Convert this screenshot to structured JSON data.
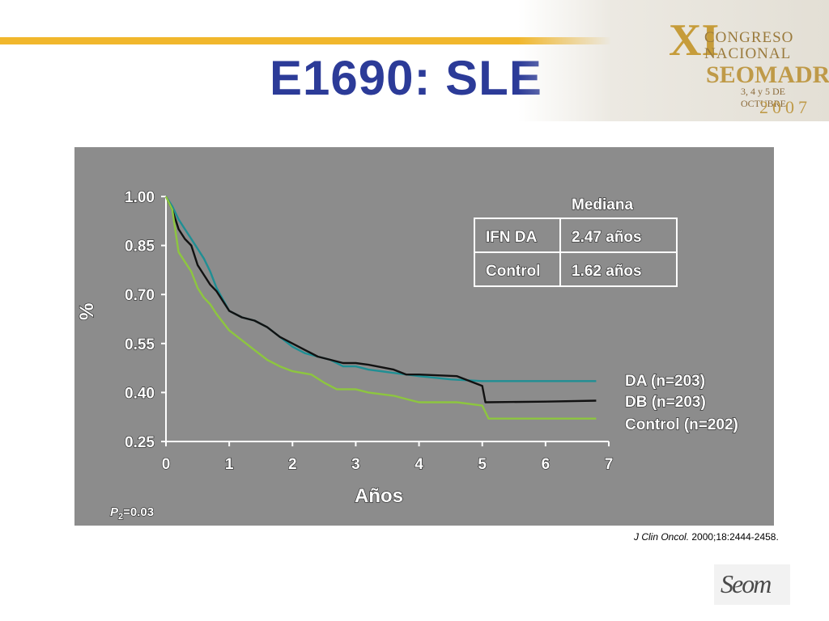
{
  "slide": {
    "title": "E1690:  SLE",
    "reference_journal": "J Clin Oncol.",
    "reference_rest": " 2000;18:2444-2458.",
    "logo": {
      "numeral": "XI",
      "line1": "CONGRESO",
      "line2": "NACIONAL",
      "line3": "SEOMADRID",
      "line4": "3, 4 y 5 DE OCTUBRE",
      "line5": "2007"
    },
    "footer_logo": "Seom",
    "accent_color": "#f1b72c",
    "title_color": "#2c3b98"
  },
  "chart_data": {
    "type": "line",
    "xlabel": "Años",
    "ylabel": "%",
    "xlim": [
      0,
      7
    ],
    "ylim": [
      0.25,
      1.0
    ],
    "x_ticks": [
      "0",
      "1",
      "2",
      "3",
      "4",
      "5",
      "6",
      "7"
    ],
    "y_ticks": [
      "0.25",
      "0.40",
      "0.55",
      "0.70",
      "0.85",
      "1.00"
    ],
    "pvalue": {
      "p": "P",
      "sub": "2",
      "value": "=0.03"
    },
    "table": {
      "header": "Mediana",
      "rows": [
        {
          "label": "IFN DA",
          "value": "2.47 años"
        },
        {
          "label": "Control",
          "value": "1.62 años"
        }
      ]
    },
    "series": [
      {
        "name": "DA (n=203)",
        "color": "#1f8f94",
        "points": [
          [
            0,
            1.0
          ],
          [
            0.1,
            0.97
          ],
          [
            0.2,
            0.93
          ],
          [
            0.3,
            0.9
          ],
          [
            0.4,
            0.87
          ],
          [
            0.5,
            0.84
          ],
          [
            0.6,
            0.81
          ],
          [
            0.7,
            0.77
          ],
          [
            0.8,
            0.72
          ],
          [
            1.0,
            0.65
          ],
          [
            1.2,
            0.63
          ],
          [
            1.4,
            0.62
          ],
          [
            1.6,
            0.6
          ],
          [
            1.8,
            0.57
          ],
          [
            2.0,
            0.54
          ],
          [
            2.2,
            0.52
          ],
          [
            2.4,
            0.51
          ],
          [
            2.6,
            0.5
          ],
          [
            2.8,
            0.48
          ],
          [
            3.0,
            0.48
          ],
          [
            3.2,
            0.47
          ],
          [
            3.6,
            0.46
          ],
          [
            4.0,
            0.45
          ],
          [
            4.5,
            0.44
          ],
          [
            5.0,
            0.435
          ],
          [
            6.0,
            0.435
          ],
          [
            6.8,
            0.435
          ]
        ]
      },
      {
        "name": "DB (n=203)",
        "color": "#111111",
        "points": [
          [
            0,
            1.0
          ],
          [
            0.1,
            0.96
          ],
          [
            0.2,
            0.9
          ],
          [
            0.3,
            0.87
          ],
          [
            0.4,
            0.85
          ],
          [
            0.5,
            0.79
          ],
          [
            0.6,
            0.76
          ],
          [
            0.7,
            0.73
          ],
          [
            0.8,
            0.71
          ],
          [
            0.9,
            0.68
          ],
          [
            1.0,
            0.65
          ],
          [
            1.2,
            0.63
          ],
          [
            1.4,
            0.62
          ],
          [
            1.6,
            0.6
          ],
          [
            1.8,
            0.57
          ],
          [
            2.0,
            0.55
          ],
          [
            2.2,
            0.53
          ],
          [
            2.4,
            0.51
          ],
          [
            2.6,
            0.5
          ],
          [
            2.8,
            0.49
          ],
          [
            3.0,
            0.49
          ],
          [
            3.2,
            0.485
          ],
          [
            3.6,
            0.47
          ],
          [
            3.8,
            0.455
          ],
          [
            4.0,
            0.455
          ],
          [
            4.6,
            0.45
          ],
          [
            4.8,
            0.435
          ],
          [
            5.0,
            0.42
          ],
          [
            5.05,
            0.37
          ],
          [
            6.0,
            0.372
          ],
          [
            6.8,
            0.375
          ]
        ]
      },
      {
        "name": "Control (n=202)",
        "color": "#8dc63f",
        "points": [
          [
            0,
            1.0
          ],
          [
            0.1,
            0.96
          ],
          [
            0.2,
            0.83
          ],
          [
            0.3,
            0.8
          ],
          [
            0.4,
            0.77
          ],
          [
            0.5,
            0.72
          ],
          [
            0.6,
            0.69
          ],
          [
            0.7,
            0.67
          ],
          [
            0.8,
            0.64
          ],
          [
            1.0,
            0.59
          ],
          [
            1.2,
            0.56
          ],
          [
            1.4,
            0.53
          ],
          [
            1.6,
            0.5
          ],
          [
            1.8,
            0.48
          ],
          [
            2.0,
            0.465
          ],
          [
            2.3,
            0.455
          ],
          [
            2.5,
            0.43
          ],
          [
            2.7,
            0.41
          ],
          [
            3.0,
            0.41
          ],
          [
            3.2,
            0.4
          ],
          [
            3.6,
            0.39
          ],
          [
            3.8,
            0.38
          ],
          [
            4.0,
            0.37
          ],
          [
            4.6,
            0.37
          ],
          [
            5.0,
            0.36
          ],
          [
            5.1,
            0.32
          ],
          [
            6.0,
            0.32
          ],
          [
            6.8,
            0.32
          ]
        ]
      }
    ]
  }
}
